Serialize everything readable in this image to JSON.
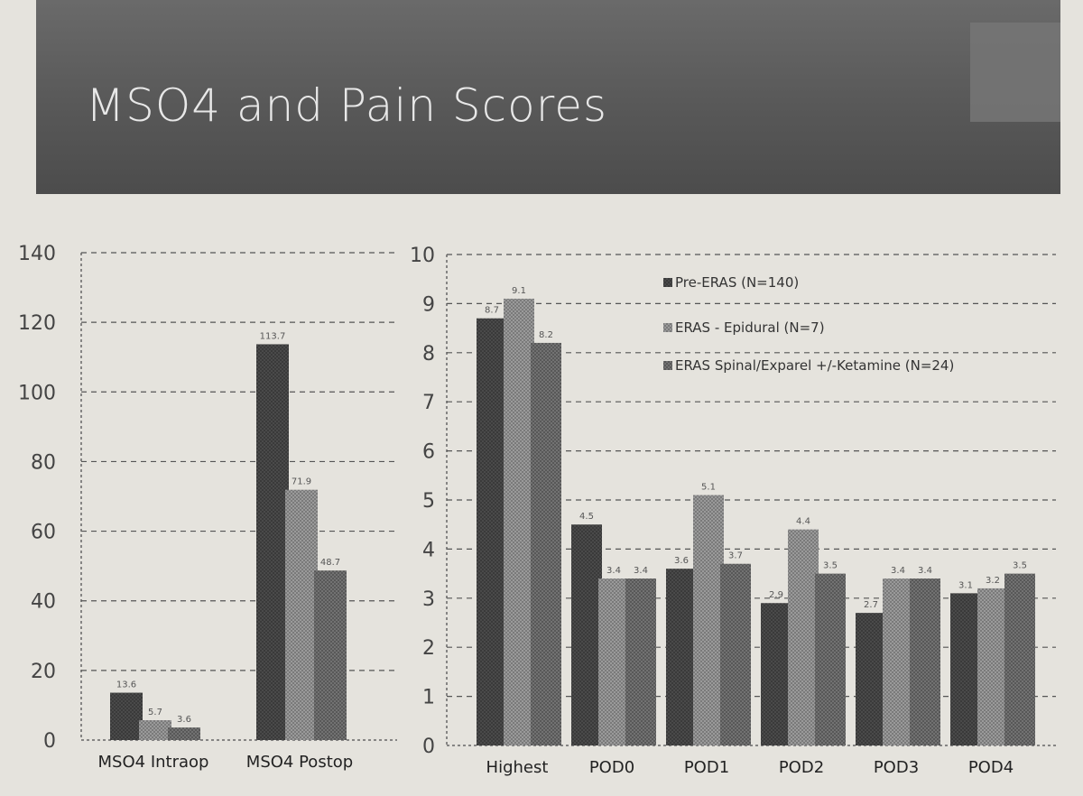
{
  "title": "MSO4 and Pain Scores",
  "colors": {
    "series1": "#4a4a4a",
    "series2": "#8c8c8c",
    "series3": "#6c6c6c",
    "grid": "#555555",
    "banner": "#5a5a5a"
  },
  "legend_labels": [
    "Pre-ERAS (N=140)",
    "ERAS - Epidural (N=7)",
    "ERAS Spinal/Exparel +/-Ketamine (N=24)"
  ],
  "chart_data": [
    {
      "type": "bar",
      "categories": [
        "MSO4 Intraop",
        "MSO4 Postop"
      ],
      "series": [
        {
          "name": "Pre-ERAS (N=140)",
          "values": [
            13.6,
            113.7
          ],
          "labels": [
            "13.6",
            "113.7"
          ]
        },
        {
          "name": "ERAS - Epidural (N=7)",
          "values": [
            5.7,
            71.9
          ],
          "labels": [
            "5.7",
            "71.9"
          ]
        },
        {
          "name": "ERAS Spinal/Exparel +/-Ketamine (N=24)",
          "values": [
            3.6,
            48.7
          ],
          "labels": [
            "3.6",
            "48.7"
          ]
        }
      ],
      "yticks": [
        "0",
        "20",
        "40",
        "60",
        "80",
        "100",
        "120",
        "140"
      ],
      "ylim": [
        0,
        140
      ],
      "grid": true,
      "legend": "none"
    },
    {
      "type": "bar",
      "categories": [
        "Highest",
        "POD0",
        "POD1",
        "POD2",
        "POD3",
        "POD4"
      ],
      "series": [
        {
          "name": "Pre-ERAS (N=140)",
          "values": [
            8.7,
            4.5,
            3.6,
            2.9,
            2.7,
            3.1
          ],
          "labels": [
            "8.7",
            "4.5",
            "3.6",
            "2.9",
            "2.7",
            "3.1"
          ]
        },
        {
          "name": "ERAS - Epidural (N=7)",
          "values": [
            9.1,
            3.4,
            5.1,
            4.4,
            3.4,
            3.2
          ],
          "labels": [
            "9.1",
            "3.4",
            "5.1",
            "4.4",
            "3.4",
            "3.2"
          ]
        },
        {
          "name": "ERAS Spinal/Exparel +/-Ketamine (N=24)",
          "values": [
            8.2,
            3.4,
            3.7,
            3.5,
            3.4,
            3.5
          ],
          "labels": [
            "8.2",
            "3.4",
            "3.7",
            "3.5",
            "3.4",
            "3.5"
          ]
        }
      ],
      "yticks": [
        "0",
        "1",
        "2",
        "3",
        "4",
        "5",
        "6",
        "7",
        "8",
        "9",
        "10"
      ],
      "ylim": [
        0,
        10
      ],
      "grid": true,
      "legend": "top-right"
    }
  ]
}
